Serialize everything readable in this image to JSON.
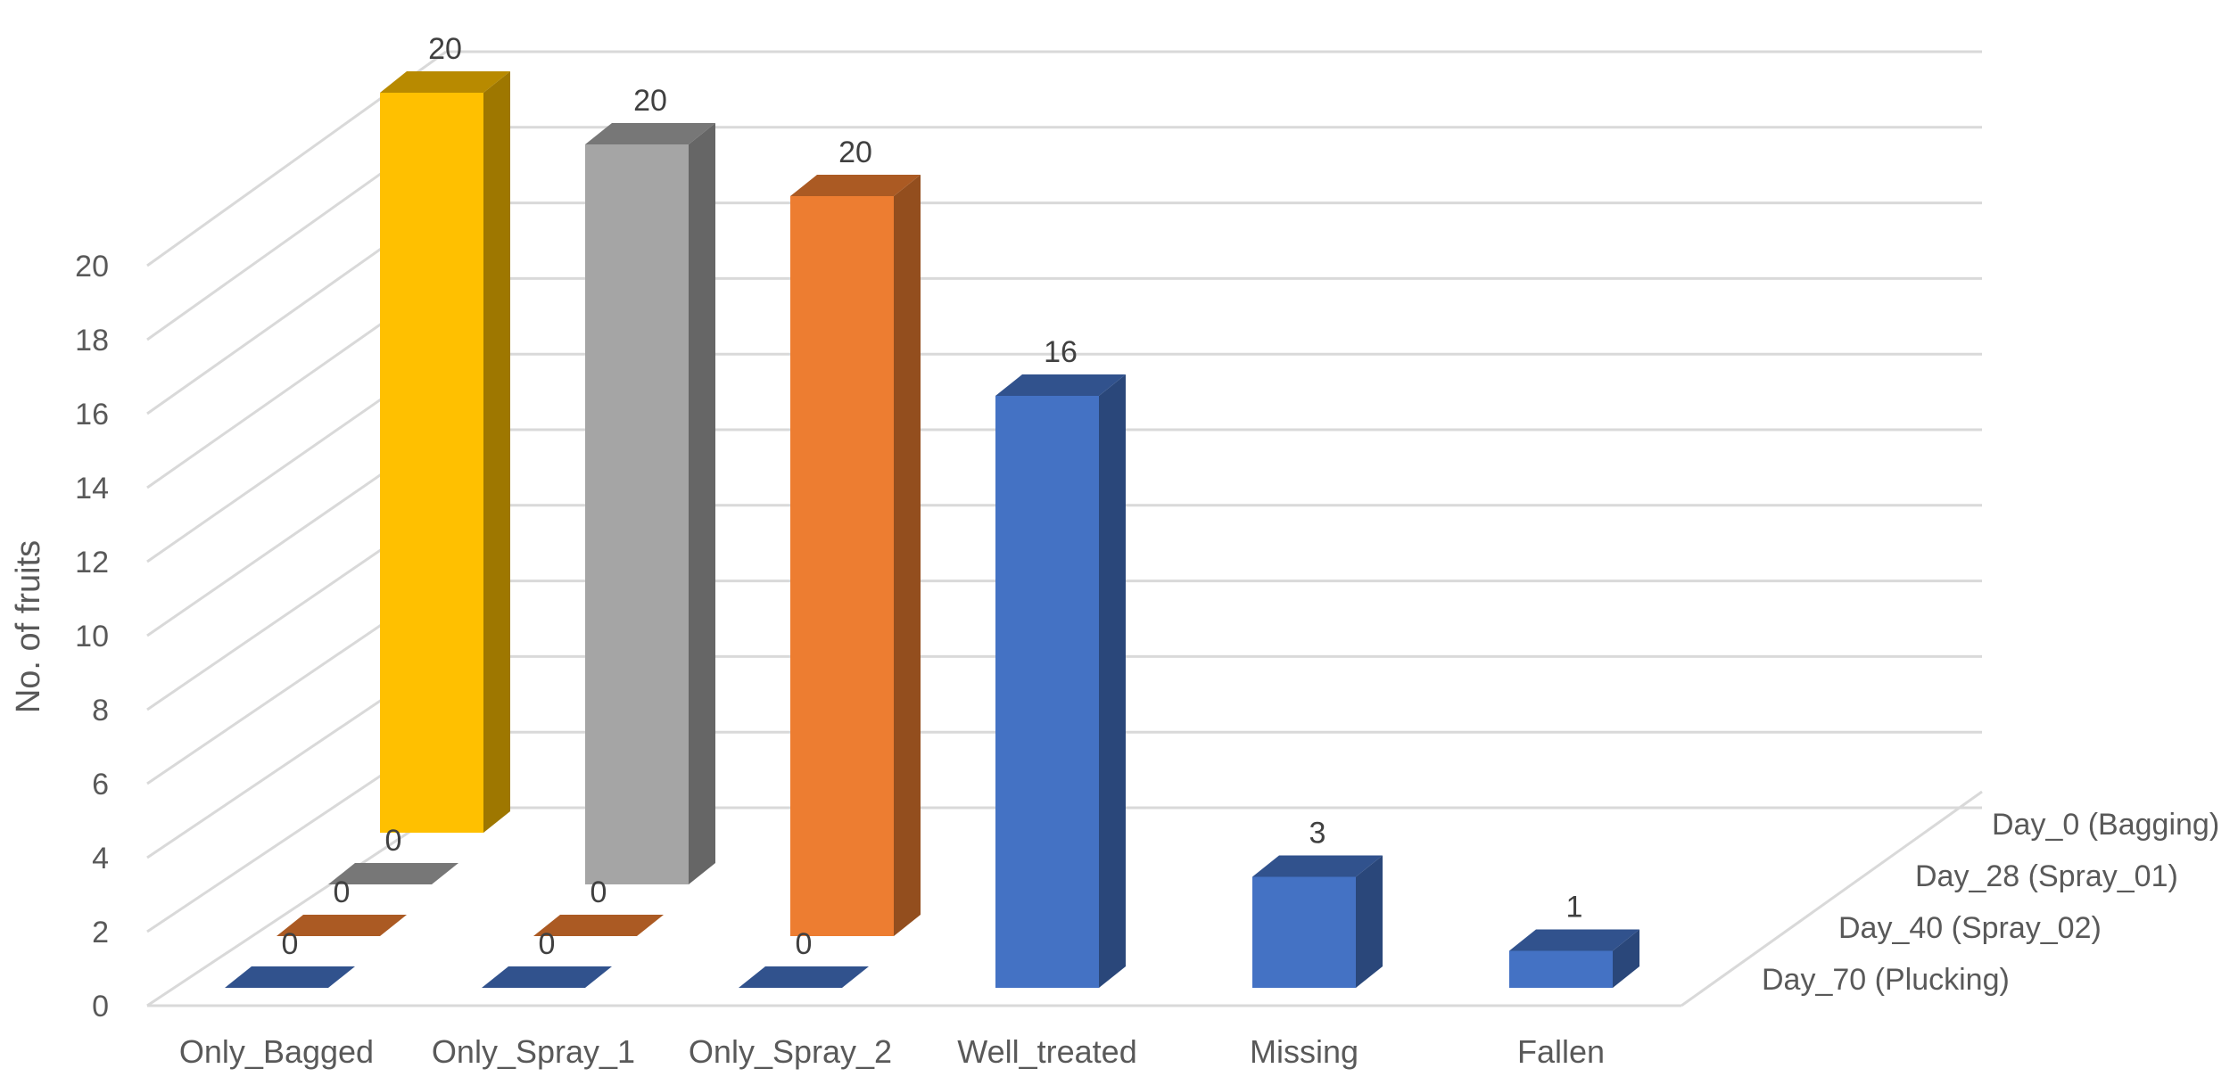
{
  "chart_data": {
    "type": "bar",
    "subtype": "3d-column",
    "title": "",
    "ylabel": "No. of fruits",
    "xlabel": "",
    "ylim": [
      0,
      20
    ],
    "yticks": [
      "0",
      "2",
      "4",
      "6",
      "8",
      "10",
      "12",
      "14",
      "16",
      "18",
      "20"
    ],
    "grid": true,
    "categories": [
      "Only_Bagged",
      "Only_Spray_1",
      "Only_Spray_2",
      "Well_treated",
      "Missing",
      "Fallen"
    ],
    "series": [
      {
        "name": "Day_0 (Bagging)",
        "color": "#FFC000",
        "values": [
          20,
          null,
          null,
          null,
          null,
          null
        ]
      },
      {
        "name": "Day_28 (Spray_01)",
        "color": "#A5A5A5",
        "values": [
          0,
          20,
          null,
          null,
          null,
          null
        ]
      },
      {
        "name": "Day_40 (Spray_02)",
        "color": "#ED7D31",
        "values": [
          0,
          0,
          20,
          null,
          null,
          null
        ]
      },
      {
        "name": "Day_70 (Plucking)",
        "color": "#4472C4",
        "values": [
          0,
          0,
          0,
          16,
          3,
          1
        ]
      }
    ]
  }
}
